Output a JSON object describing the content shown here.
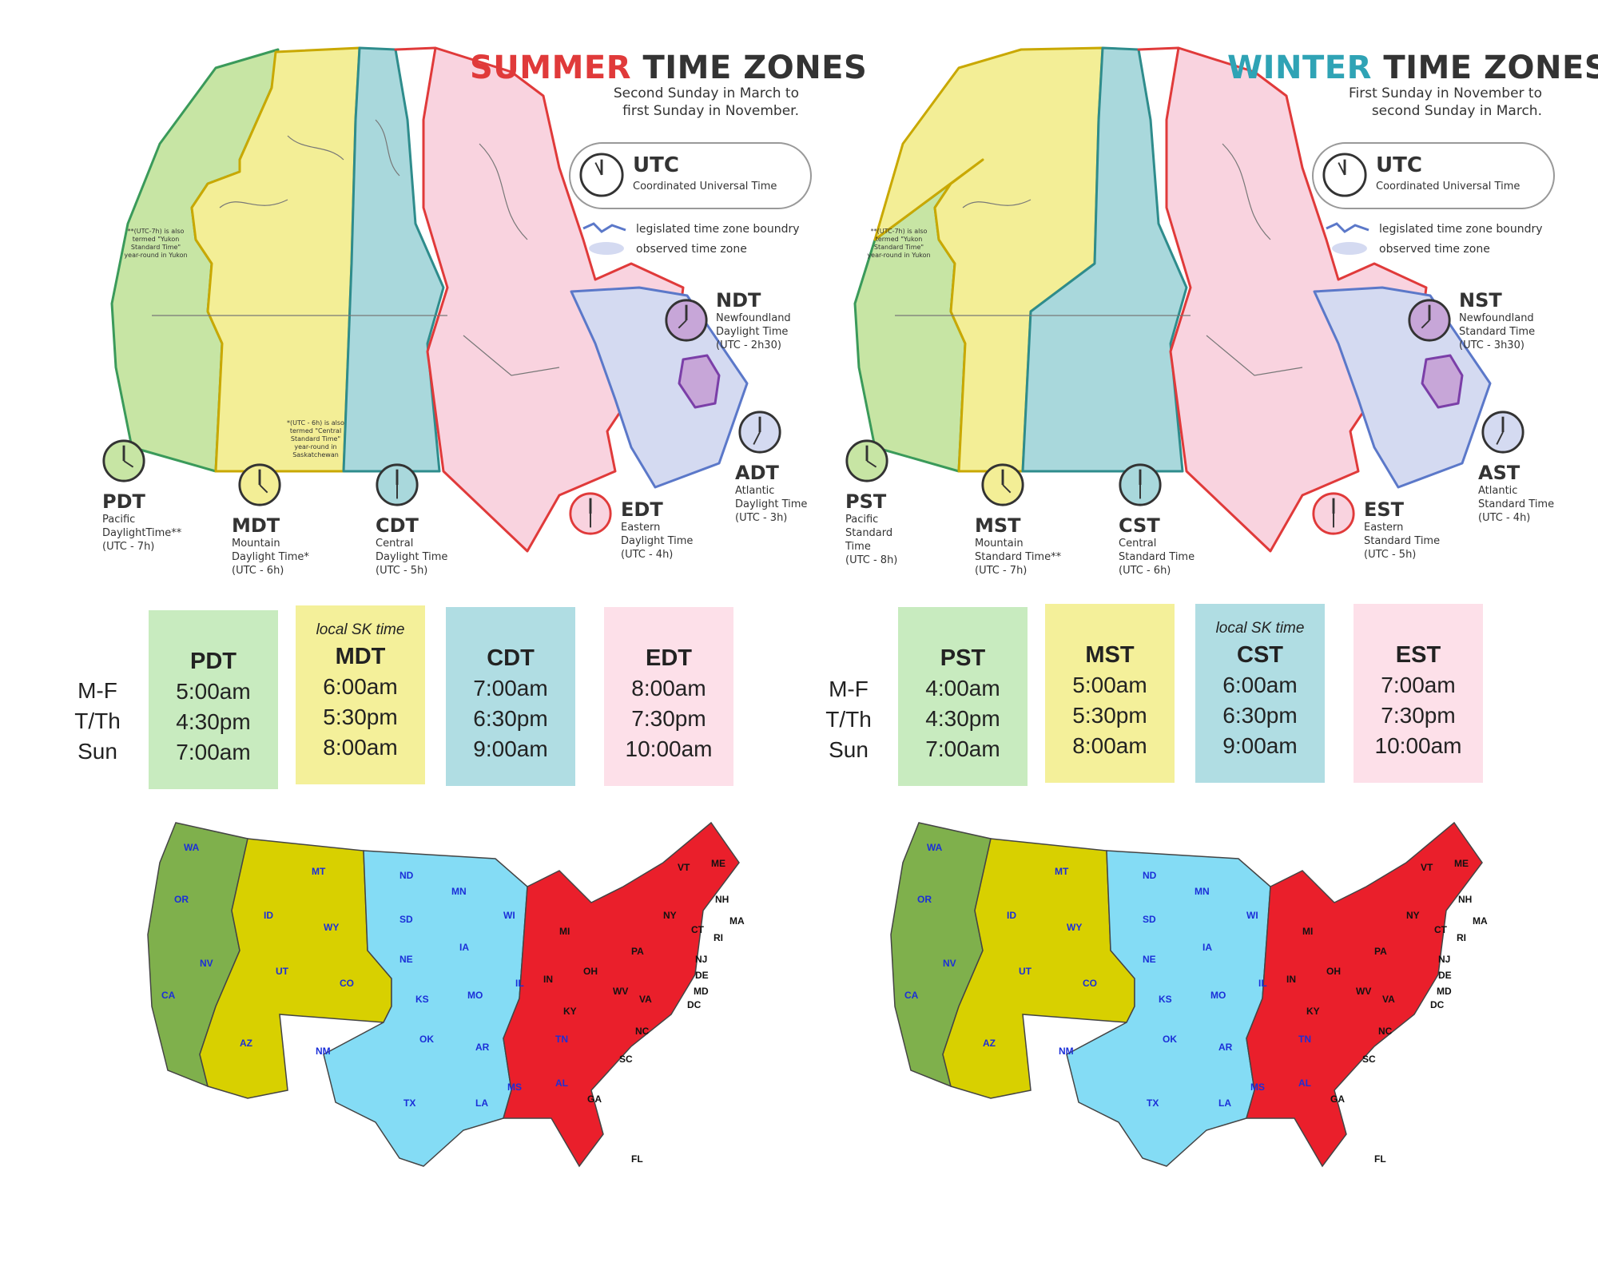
{
  "colors": {
    "pacific_map": "#c7e5a4",
    "mountain_map": "#f3ee96",
    "central_map": "#a9d8dc",
    "eastern_map": "#f9d3df",
    "atlantic_map": "#d4daf1",
    "summer_title_accent": "#e03a3a",
    "winter_title_accent": "#2fa3b5",
    "us_pacific": "#7fb04c",
    "us_mountain": "#d8d000",
    "us_central": "#84dcf5",
    "us_eastern": "#ea1f2b",
    "box_pacific": "#c8ebbf",
    "box_mountain": "#f4f09a",
    "box_central": "#b0dde3",
    "box_eastern": "#fde0e9"
  },
  "summer": {
    "title_accent": "SUMMER",
    "title_rest": "TIME ZONES",
    "subtitle_line1": "Second Sunday in March to",
    "subtitle_line2": "first Sunday in November.",
    "utc_title": "UTC",
    "utc_sub": "Coordinated Universal Time",
    "legend_boundary": "legislated time zone boundry",
    "legend_observed": "observed time zone",
    "yukon_note": "**(UTC-7h) is also termed \"Yukon Standard Time\" year-round in Yukon",
    "sask_note": "*(UTC - 6h) is also termed \"Central Standard Time\" year-round in Saskatchewan",
    "zones": [
      {
        "abbr": "PDT",
        "name": "Pacific DaylightTime**",
        "offset": "(UTC - 7h)"
      },
      {
        "abbr": "MDT",
        "name": "Mountain Daylight Time*",
        "offset": "(UTC - 6h)"
      },
      {
        "abbr": "CDT",
        "name": "Central Daylight Time",
        "offset": "(UTC - 5h)"
      },
      {
        "abbr": "EDT",
        "name": "Eastern Daylight Time",
        "offset": "(UTC - 4h)"
      },
      {
        "abbr": "ADT",
        "name": "Atlantic Daylight Time",
        "offset": "(UTC - 3h)"
      },
      {
        "abbr": "NDT",
        "name": "Newfoundland Daylight Time",
        "offset": "(UTC - 2h30)"
      }
    ],
    "row_labels": [
      "M-F",
      "T/Th",
      "Sun"
    ],
    "schedule": [
      {
        "local": "",
        "abbr": "PDT",
        "times": [
          "5:00am",
          "4:30pm",
          "7:00am"
        ]
      },
      {
        "local": "local SK time",
        "abbr": "MDT",
        "times": [
          "6:00am",
          "5:30pm",
          "8:00am"
        ]
      },
      {
        "local": "",
        "abbr": "CDT",
        "times": [
          "7:00am",
          "6:30pm",
          "9:00am"
        ]
      },
      {
        "local": "",
        "abbr": "EDT",
        "times": [
          "8:00am",
          "7:30pm",
          "10:00am"
        ]
      }
    ]
  },
  "winter": {
    "title_accent": "WINTER",
    "title_rest": "TIME ZONES",
    "subtitle_line1": "First Sunday in November to",
    "subtitle_line2": "second Sunday in March.",
    "utc_title": "UTC",
    "utc_sub": "Coordinated Universal Time",
    "legend_boundary": "legislated time zone boundry",
    "legend_observed": "observed time zone",
    "yukon_note": "**(UTC-7h) is also termed \"Yukon Standard Time\" year-round in Yukon",
    "zones": [
      {
        "abbr": "PST",
        "name": "Pacific Standard Time",
        "offset": "(UTC - 8h)"
      },
      {
        "abbr": "MST",
        "name": "Mountain Standard Time**",
        "offset": "(UTC - 7h)"
      },
      {
        "abbr": "CST",
        "name": "Central Standard Time",
        "offset": "(UTC - 6h)"
      },
      {
        "abbr": "EST",
        "name": "Eastern Standard Time",
        "offset": "(UTC - 5h)"
      },
      {
        "abbr": "AST",
        "name": "Atlantic Standard Time",
        "offset": "(UTC - 4h)"
      },
      {
        "abbr": "NST",
        "name": "Newfoundland Standard Time",
        "offset": "(UTC - 3h30)"
      }
    ],
    "row_labels": [
      "M-F",
      "T/Th",
      "Sun"
    ],
    "schedule": [
      {
        "local": "",
        "abbr": "PST",
        "times": [
          "4:00am",
          "4:30pm",
          "7:00am"
        ]
      },
      {
        "local": "",
        "abbr": "MST",
        "times": [
          "5:00am",
          "5:30pm",
          "8:00am"
        ]
      },
      {
        "local": "local SK time",
        "abbr": "CST",
        "times": [
          "6:00am",
          "6:30pm",
          "9:00am"
        ]
      },
      {
        "local": "",
        "abbr": "EST",
        "times": [
          "7:00am",
          "7:30pm",
          "10:00am"
        ]
      }
    ]
  },
  "us_states": [
    "WA",
    "OR",
    "CA",
    "NV",
    "ID",
    "MT",
    "WY",
    "UT",
    "CO",
    "AZ",
    "NM",
    "ND",
    "SD",
    "NE",
    "KS",
    "OK",
    "TX",
    "MN",
    "IA",
    "MO",
    "AR",
    "LA",
    "WI",
    "IL",
    "MS",
    "AL",
    "TN",
    "MI",
    "IN",
    "OH",
    "KY",
    "GA",
    "FL",
    "SC",
    "NC",
    "VA",
    "WV",
    "PA",
    "NY",
    "VT",
    "NH",
    "ME",
    "MA",
    "CT",
    "RI",
    "NJ",
    "DE",
    "MD",
    "DC"
  ]
}
